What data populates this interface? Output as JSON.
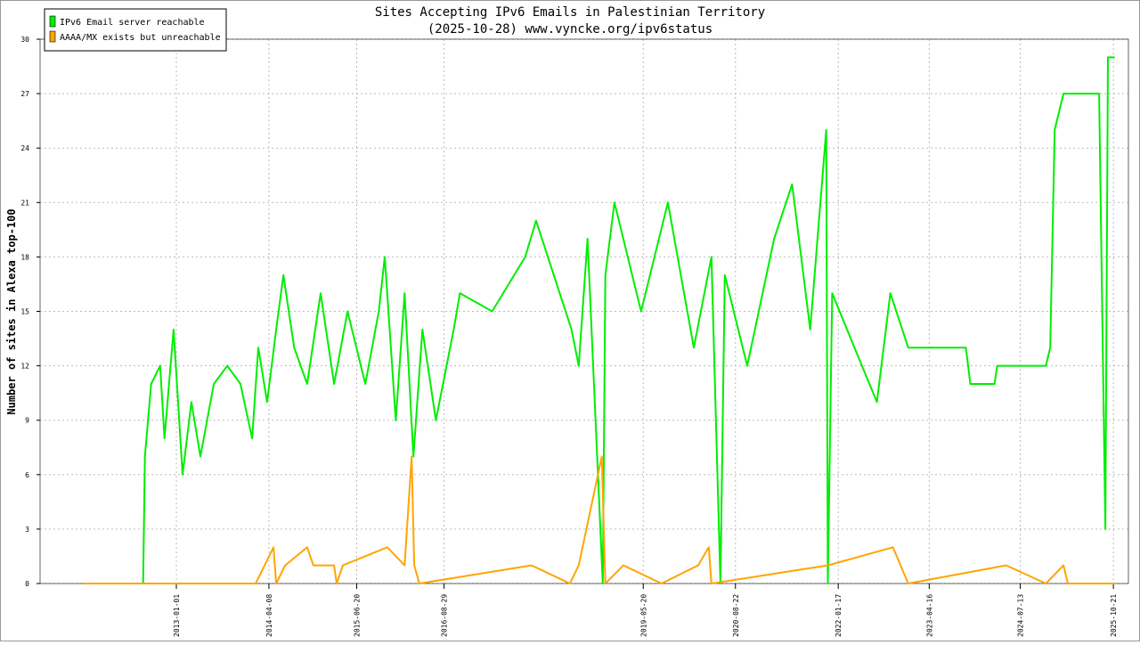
{
  "chart_data": {
    "type": "line",
    "title": "Sites Accepting IPv6 Emails in Palestinian Territory",
    "subtitle": "(2025-10-28) www.vyncke.org/ipv6status",
    "y_label": "Number of sites in Alexa top-100",
    "xlim": [
      "2011-02-21",
      "2026-01-04"
    ],
    "xticks": [
      "2013-01-01",
      "2014-04-08",
      "2015-06-20",
      "2016-08-29",
      "2019-05-20",
      "2020-08-22",
      "2022-01-17",
      "2023-04-16",
      "2024-07-13",
      "2025-10-21"
    ],
    "ylim": [
      0,
      30
    ],
    "yticks": [
      0,
      3,
      6,
      9,
      12,
      15,
      18,
      21,
      24,
      27,
      30
    ],
    "grid": true,
    "legend": "upper left",
    "series": [
      {
        "name": "IPv6 Email server reachable",
        "color": "#00ee00",
        "x": [
          "2011-09-21",
          "2012-07-19",
          "2012-07-28",
          "2012-08-28",
          "2012-10-12",
          "2012-11-03",
          "2012-12-18",
          "2013-02-01",
          "2013-03-17",
          "2013-05-01",
          "2013-07-07",
          "2013-09-12",
          "2013-11-17",
          "2014-01-14",
          "2014-02-14",
          "2014-03-30",
          "2014-05-14",
          "2014-06-19",
          "2014-08-12",
          "2014-10-16",
          "2014-12-22",
          "2015-02-27",
          "2015-05-05",
          "2015-08-02",
          "2015-10-08",
          "2015-11-07",
          "2016-01-01",
          "2016-02-14",
          "2016-03-29",
          "2016-05-13",
          "2016-07-19",
          "2016-10-16",
          "2016-11-16",
          "2017-04-26",
          "2017-10-08",
          "2017-12-01",
          "2018-05-27",
          "2018-07-02",
          "2018-08-15",
          "2018-10-30",
          "2018-11-12",
          "2018-12-27",
          "2019-05-09",
          "2019-09-20",
          "2020-01-27",
          "2020-04-24",
          "2020-06-08",
          "2020-06-30",
          "2020-10-20",
          "2021-03-03",
          "2021-06-01",
          "2021-08-30",
          "2021-11-18",
          "2021-11-26",
          "2021-12-18",
          "2022-04-08",
          "2022-07-29",
          "2022-10-04",
          "2023-01-01",
          "2023-10-16",
          "2023-11-07",
          "2024-03-07",
          "2024-03-20",
          "2024-11-18",
          "2024-12-10",
          "2025-01-01",
          "2025-01-23",
          "2025-02-14",
          "2025-08-11",
          "2025-09-11",
          "2025-09-24",
          "2025-10-21",
          "2025-10-28"
        ],
        "values": [
          0,
          0,
          7,
          11,
          12,
          8,
          14,
          6,
          10,
          7,
          11,
          12,
          11,
          8,
          13,
          10,
          14,
          17,
          13,
          11,
          16,
          11,
          15,
          11,
          15,
          18,
          9,
          16,
          7,
          14,
          9,
          14,
          16,
          15,
          18,
          20,
          14,
          12,
          19,
          0,
          17,
          21,
          15,
          21,
          13,
          18,
          0,
          17,
          12,
          19,
          22,
          14,
          25,
          0,
          16,
          13,
          10,
          16,
          13,
          13,
          11,
          11,
          12,
          12,
          13,
          25,
          26,
          27,
          27,
          3,
          29,
          29,
          29
        ]
      },
      {
        "name": "AAAA/MX exists but unreachable",
        "color": "#ffa500",
        "x": [
          "2011-09-21",
          "2014-02-01",
          "2014-05-01",
          "2014-05-14",
          "2014-06-28",
          "2014-10-16",
          "2014-11-16",
          "2015-02-27",
          "2015-03-12",
          "2015-04-12",
          "2015-11-20",
          "2016-02-14",
          "2016-03-20",
          "2016-04-02",
          "2016-04-28",
          "2017-11-08",
          "2018-05-19",
          "2018-07-02",
          "2018-10-25",
          "2018-11-12",
          "2019-02-10",
          "2019-08-19",
          "2020-02-18",
          "2020-04-11",
          "2020-04-24",
          "2021-11-26",
          "2022-10-17",
          "2023-01-01",
          "2024-05-04",
          "2024-11-18",
          "2025-02-14",
          "2025-03-08",
          "2025-10-28"
        ],
        "values": [
          0,
          0,
          2,
          0,
          1,
          2,
          1,
          1,
          0,
          1,
          2,
          1,
          7,
          1,
          0,
          1,
          0,
          1,
          7,
          0,
          1,
          0,
          1,
          2,
          0,
          1,
          2,
          0,
          1,
          0,
          1,
          0,
          0
        ]
      }
    ]
  }
}
